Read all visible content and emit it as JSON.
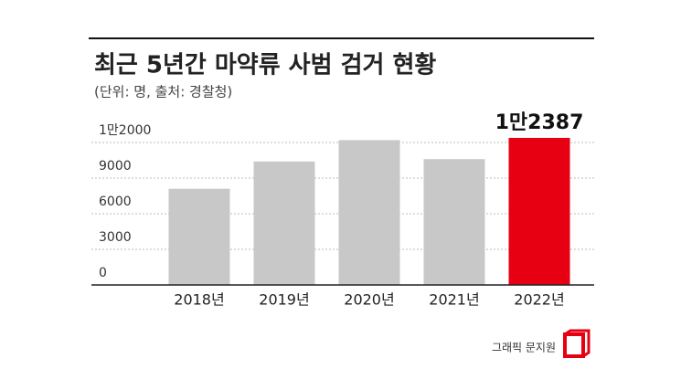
{
  "chart_data": {
    "type": "bar",
    "title": "최근 5년간 마약류 사범 검거 현황",
    "subtitle": "(단위: 명, 출처: 경찰청)",
    "credit": "그래픽 문지원",
    "categories": [
      "2018년",
      "2019년",
      "2020년",
      "2021년",
      "2022년"
    ],
    "values": [
      8100,
      10400,
      12200,
      10600,
      12387
    ],
    "value_labels": [
      null,
      null,
      null,
      null,
      "1만2387"
    ],
    "colors": [
      "#c8c8c8",
      "#c8c8c8",
      "#c8c8c8",
      "#c8c8c8",
      "#e60012"
    ],
    "ylim": [
      0,
      13000
    ],
    "yticks": [
      0,
      3000,
      6000,
      9000,
      {
        "value": 12000,
        "label": "1만2000"
      }
    ],
    "grid": true
  }
}
